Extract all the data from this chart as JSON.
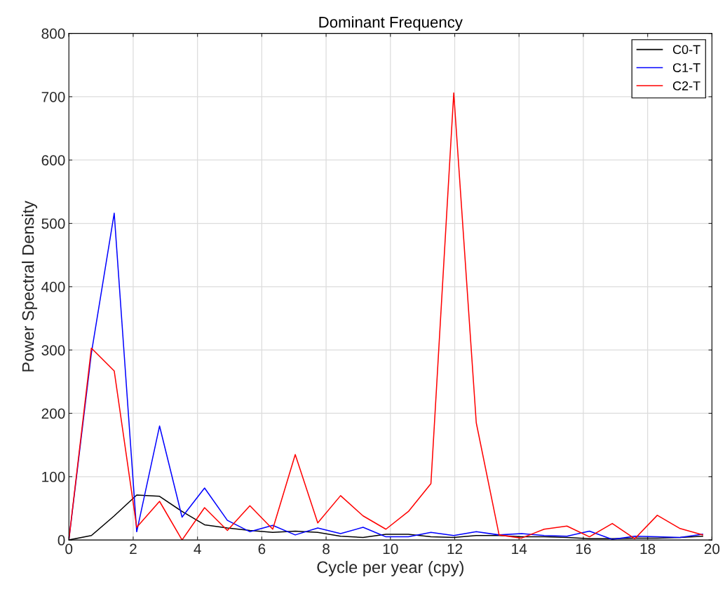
{
  "chart_data": {
    "type": "line",
    "title": "Dominant Frequency",
    "xlabel": "Cycle per year (cpy)",
    "ylabel": "Power Spectral Density",
    "x": [
      0,
      0.7,
      1.41,
      2.11,
      2.82,
      3.52,
      4.22,
      4.93,
      5.63,
      6.34,
      7.04,
      7.74,
      8.45,
      9.15,
      9.86,
      10.56,
      11.26,
      11.97,
      12.67,
      13.38,
      14.08,
      14.78,
      15.49,
      16.19,
      16.9,
      17.6,
      18.3,
      19.01,
      19.71
    ],
    "series": [
      {
        "name": "C0-T",
        "color": "#000000",
        "values": [
          0,
          7,
          38,
          71,
          69,
          45,
          24,
          19,
          15,
          12,
          14,
          12,
          6,
          4,
          9,
          9,
          5,
          4,
          7,
          7,
          5,
          5,
          4,
          2,
          2,
          3,
          3,
          4,
          6
        ]
      },
      {
        "name": "C1-T",
        "color": "#0000ff",
        "values": [
          0,
          295,
          516,
          13,
          180,
          36,
          82,
          31,
          13,
          23,
          8,
          19,
          10,
          20,
          5,
          5,
          12,
          7,
          13,
          8,
          10,
          7,
          6,
          14,
          1,
          6,
          5,
          4,
          9
        ]
      },
      {
        "name": "C2-T",
        "color": "#ff0000",
        "values": [
          0,
          303,
          267,
          20,
          61,
          0,
          51,
          15,
          54,
          17,
          135,
          27,
          70,
          38,
          17,
          45,
          89,
          706,
          185,
          8,
          3,
          17,
          22,
          5,
          26,
          2,
          39,
          18,
          8
        ]
      }
    ],
    "xlim": [
      0,
      20
    ],
    "xticks": [
      0,
      2,
      4,
      6,
      8,
      10,
      12,
      14,
      16,
      18,
      20
    ],
    "ylim": [
      0,
      800
    ],
    "yticks": [
      0,
      100,
      200,
      300,
      400,
      500,
      600,
      700,
      800
    ],
    "grid": true,
    "legend": "top right",
    "marker": "none",
    "line_style": "solid"
  }
}
